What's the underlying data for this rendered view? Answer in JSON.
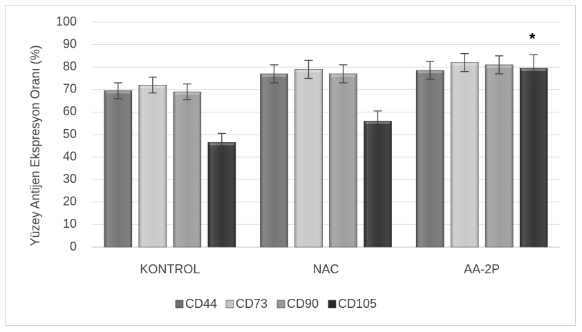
{
  "chart_data": {
    "type": "bar",
    "title": "",
    "xlabel": "",
    "ylabel": "Yüzey Antijen Ekspresyon Oranı (%)",
    "ylim": [
      0,
      100
    ],
    "yticks": [
      0,
      10,
      20,
      30,
      40,
      50,
      60,
      70,
      80,
      90,
      100
    ],
    "categories": [
      "KONTROL",
      "NAC",
      "AA-2P"
    ],
    "grid": true,
    "legend_position": "bottom",
    "series": [
      {
        "name": "CD44",
        "values": [
          69.5,
          77,
          78.5
        ],
        "errors": [
          3.5,
          4,
          4
        ],
        "color": "#6e6e6e"
      },
      {
        "name": "CD73",
        "values": [
          72,
          79,
          82
        ],
        "errors": [
          3.5,
          4,
          4
        ],
        "color": "#c6c6c6"
      },
      {
        "name": "CD90",
        "values": [
          69,
          77,
          81
        ],
        "errors": [
          3.5,
          4,
          4
        ],
        "color": "#999999"
      },
      {
        "name": "CD105",
        "values": [
          46.5,
          56,
          79.5
        ],
        "errors": [
          4,
          4.5,
          6
        ],
        "color": "#2b2b2b"
      }
    ],
    "annotations": [
      {
        "text": "*",
        "category": "AA-2P",
        "series": "CD105"
      }
    ]
  }
}
